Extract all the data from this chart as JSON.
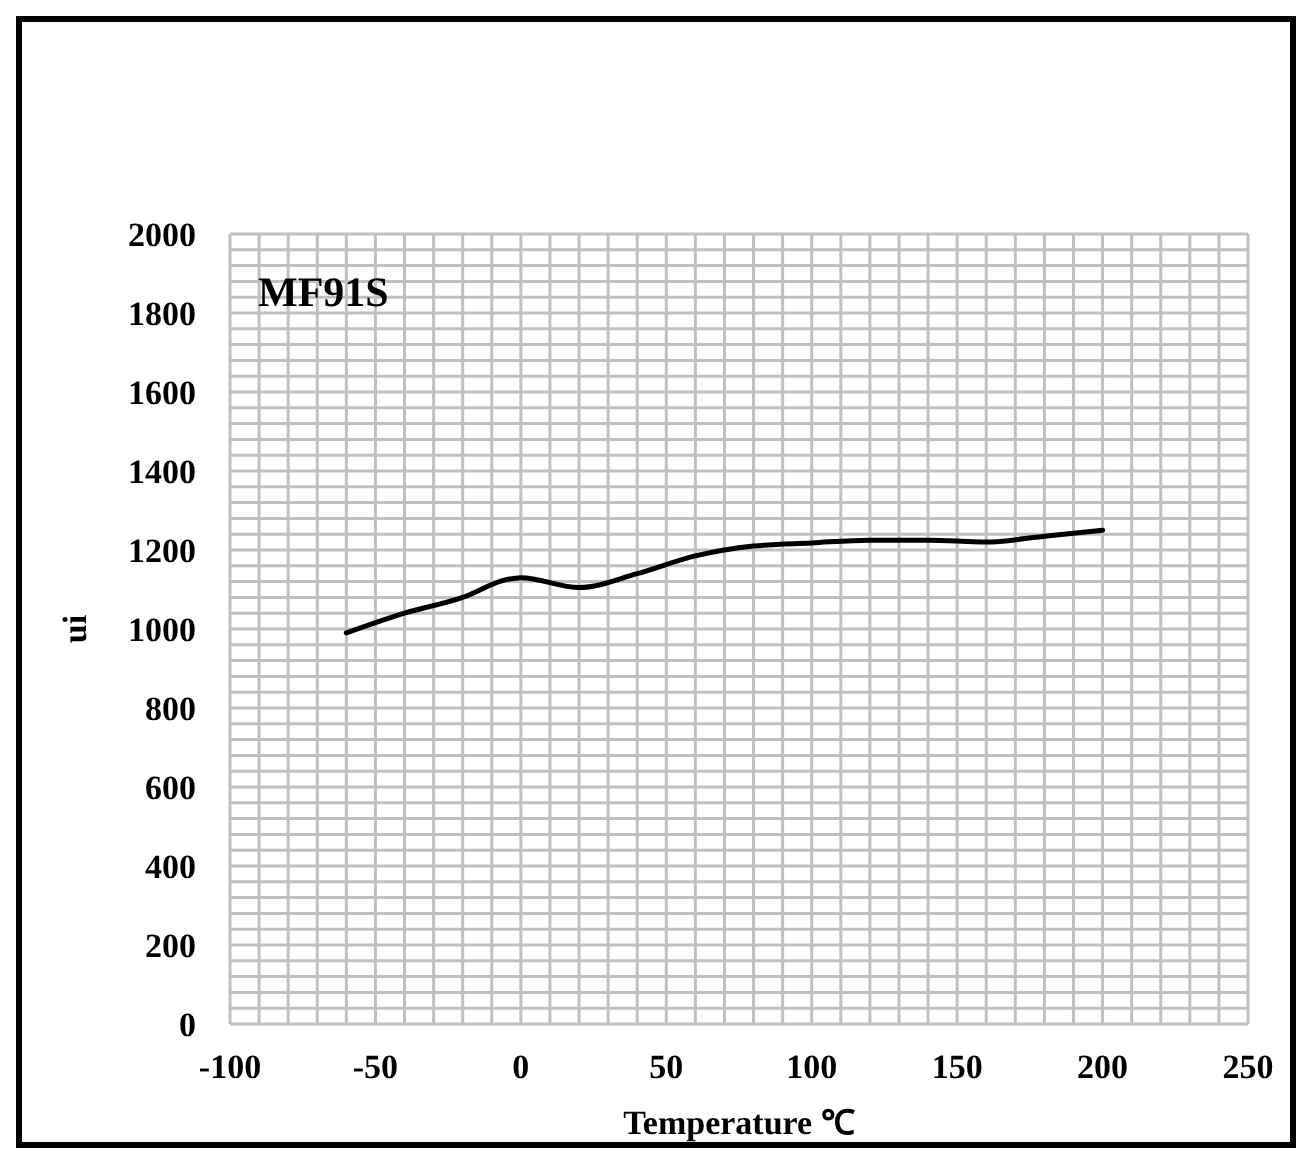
{
  "chart_data": {
    "type": "line",
    "xlabel": "Temperature ℃",
    "ylabel": "ui",
    "annotations": [
      "MF91S"
    ],
    "x": [
      -60,
      -40,
      -20,
      -5,
      0,
      20,
      40,
      60,
      80,
      100,
      120,
      140,
      160,
      180,
      200
    ],
    "series": [
      {
        "color": "#000000",
        "values": [
          990,
          1040,
          1080,
          1125,
          1130,
          1105,
          1140,
          1185,
          1210,
          1218,
          1225,
          1225,
          1220,
          1235,
          1250
        ]
      }
    ],
    "xlim": [
      -100,
      250
    ],
    "xticks": [
      -100,
      -50,
      0,
      50,
      100,
      150,
      200,
      250
    ],
    "ylim": [
      0,
      2000
    ],
    "yticks": [
      0,
      200,
      400,
      600,
      800,
      1000,
      1200,
      1400,
      1600,
      1800,
      2000
    ],
    "grid": true,
    "marker": "none",
    "line_style": "solid"
  }
}
